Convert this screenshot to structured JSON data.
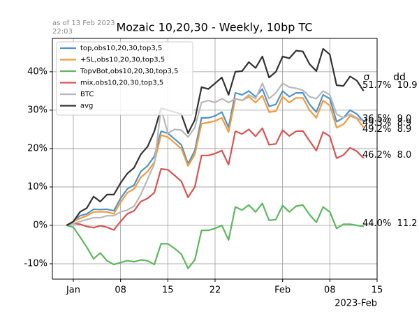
{
  "chart_data": {
    "type": "line",
    "title": "Mozaic 10,20,30 - Weekly, 10bp TC",
    "annotation": [
      "as of 13 Feb 2023",
      "22:03"
    ],
    "xlabel": "2023-Feb",
    "right_headers": [
      "σ",
      "dd"
    ],
    "x": [
      -1,
      0,
      1,
      2,
      3,
      4,
      5,
      6,
      7,
      8,
      9,
      10,
      11,
      12,
      13,
      14,
      15,
      16,
      17,
      18,
      19,
      20,
      21,
      22,
      23,
      24,
      25,
      26,
      27,
      28,
      29,
      30,
      31,
      32,
      33,
      34,
      35,
      36,
      37,
      38,
      39,
      40,
      41,
      42,
      43
    ],
    "xlim": [
      -3.1,
      45
    ],
    "xticks": [
      {
        "value": 0,
        "label": "Jan"
      },
      {
        "value": 7,
        "label": "08"
      },
      {
        "value": 14,
        "label": "15"
      },
      {
        "value": 21,
        "label": "22"
      },
      {
        "value": 31,
        "label": "Feb"
      },
      {
        "value": 38,
        "label": "08"
      },
      {
        "value": 45,
        "label": "15"
      }
    ],
    "ylim": [
      -14,
      48.7
    ],
    "yticks": [
      {
        "value": -10,
        "label": "-10%"
      },
      {
        "value": 0,
        "label": "0%"
      },
      {
        "value": 10,
        "label": "10%"
      },
      {
        "value": 20,
        "label": "20%"
      },
      {
        "value": 30,
        "label": "30%"
      },
      {
        "value": 40,
        "label": "40%"
      }
    ],
    "grid": true,
    "legend": "upper left",
    "series": [
      {
        "name": "top,obs10,20,30,top3,5",
        "color": "#4e94c7",
        "end_label": "49.3%  8.9",
        "values": [
          0,
          1,
          2.5,
          3,
          4.2,
          4.1,
          4.2,
          3.8,
          7,
          9.5,
          10.5,
          14,
          15.5,
          18,
          24.5,
          24,
          22.5,
          21,
          16,
          19.5,
          28,
          28,
          28.5,
          29.5,
          25.5,
          34.5,
          34,
          35,
          33.5,
          35.5,
          31,
          31.5,
          35,
          33.5,
          34.5,
          34.5,
          31.5,
          29.5,
          34,
          33,
          27,
          28,
          30,
          29,
          27
        ]
      },
      {
        "name": "+SL,obs10,20,30,top3,5",
        "color": "#f5993b",
        "end_label": "49.2%  8.9",
        "values": [
          0,
          1,
          1.8,
          2.5,
          3.5,
          3.5,
          3.5,
          3,
          6,
          8.5,
          9.5,
          12.5,
          14,
          16.5,
          23.5,
          23,
          21.5,
          20,
          15.5,
          18.5,
          26.5,
          26.8,
          27.2,
          28,
          24.3,
          33,
          32.5,
          33.5,
          32,
          33.8,
          29.5,
          29.7,
          33.5,
          32,
          33.2,
          33.2,
          30,
          28,
          32.5,
          31.2,
          25.5,
          26.3,
          28.5,
          27.8,
          25.5
        ]
      },
      {
        "name": "TopvBot,obs10,20,30,top3,5",
        "color": "#5cb85c",
        "end_label": "44.0%  11.2",
        "values": [
          0,
          -0.5,
          -3,
          -5.7,
          -8.7,
          -7.2,
          -9.2,
          -10.2,
          -9.7,
          -9.2,
          -9.5,
          -9,
          -9.2,
          -10.2,
          -4.8,
          -4.8,
          -6,
          -7.5,
          -11.2,
          -9,
          -1.3,
          -1.3,
          -0.8,
          0,
          -3.8,
          4.8,
          4,
          5.3,
          3.5,
          5.7,
          1.3,
          1.5,
          5.2,
          3.5,
          5,
          5.3,
          2.8,
          0.8,
          4.8,
          3.5,
          -0.8,
          0.3,
          0.3,
          0,
          -0.3
        ]
      },
      {
        "name": "mix,obs10,20,30,top3,5",
        "color": "#d9534f",
        "end_label": "46.2%  8.0",
        "values": [
          0,
          0.5,
          0.3,
          -0.3,
          -0.6,
          -0.1,
          -0.5,
          -1.2,
          1,
          3,
          3.8,
          6.2,
          7,
          8.5,
          14.7,
          14.5,
          13,
          11.5,
          7.3,
          10,
          18.2,
          18.2,
          18.7,
          19.5,
          15.8,
          24.5,
          23.8,
          25,
          23.2,
          25.3,
          21,
          21.2,
          24.8,
          23.3,
          24.5,
          24.6,
          22,
          19.5,
          24.3,
          23.2,
          17.5,
          18.3,
          20.2,
          19.3,
          17.5
        ]
      },
      {
        "name": "BTC",
        "color": "#b8b8b8",
        "end_label": "36.5%  9.0",
        "values": [
          0,
          0.5,
          1,
          1.5,
          2,
          2,
          2.5,
          2.5,
          3.5,
          4,
          5,
          8,
          12,
          16,
          30.5,
          24,
          25,
          24.8,
          23,
          25.5,
          32,
          32.5,
          32,
          33,
          32,
          33,
          32.5,
          34,
          33,
          37,
          33,
          34.5,
          37,
          36,
          35.7,
          35.2,
          33.5,
          33,
          35,
          34,
          29,
          28,
          29,
          28,
          27
        ]
      },
      {
        "name": "avg",
        "color": "#333333",
        "end_label": "51.7%  10.9",
        "values": [
          0,
          1,
          3.5,
          4.5,
          7.5,
          6.2,
          8,
          8,
          11,
          13.5,
          15,
          18.5,
          20.5,
          24.5,
          30.5,
          30,
          29.5,
          29,
          24,
          27.5,
          36,
          35.5,
          37,
          38.5,
          34,
          40,
          40.2,
          42.5,
          41,
          44,
          38.5,
          40,
          44,
          43.5,
          45.5,
          45.3,
          42,
          40.2,
          46,
          44.5,
          36.5,
          36.3,
          38.8,
          37.7,
          35
        ]
      }
    ]
  }
}
